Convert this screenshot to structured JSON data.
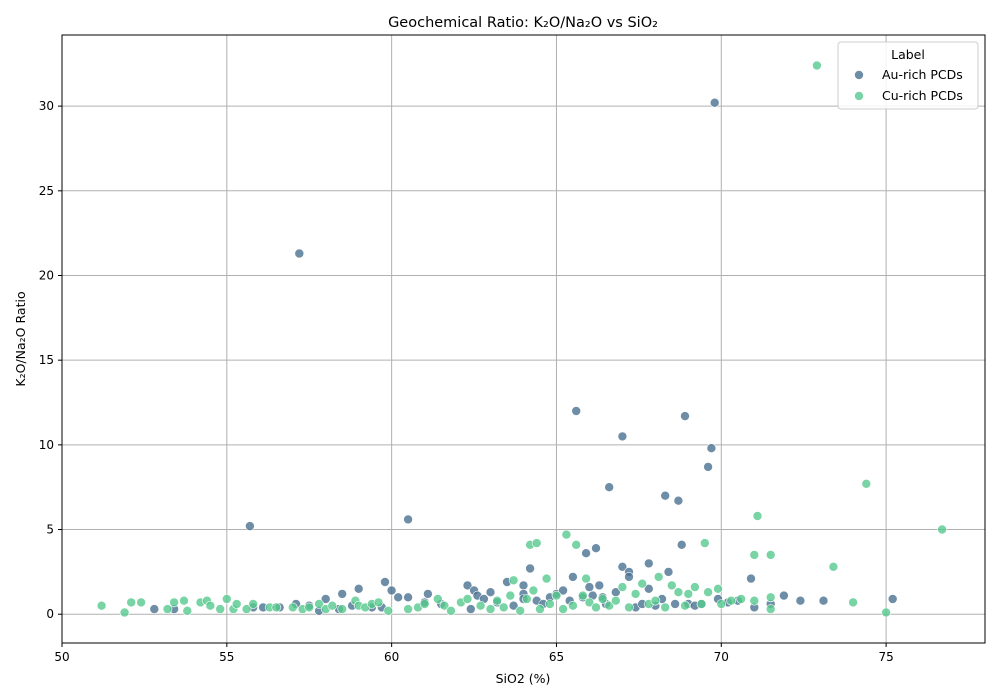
{
  "chart_data": {
    "type": "scatter",
    "title": "Geochemical Ratio: K₂O/Na₂O vs SiO₂",
    "xlabel": "SiO2 (%)",
    "ylabel": "K₂O/Na₂O Ratio",
    "xlim": [
      50,
      78
    ],
    "ylim": [
      -1.7,
      34.2
    ],
    "xticks": [
      50,
      55,
      60,
      65,
      70,
      75
    ],
    "yticks": [
      0,
      5,
      10,
      15,
      20,
      25,
      30
    ],
    "grid": true,
    "legend": {
      "title": "Label",
      "position": "top-right"
    },
    "series": [
      {
        "name": "Au-rich PCDs",
        "color": "#4a7191",
        "points": [
          [
            52.8,
            0.3
          ],
          [
            53.4,
            0.3
          ],
          [
            55.7,
            5.2
          ],
          [
            55.8,
            0.4
          ],
          [
            56.1,
            0.4
          ],
          [
            56.6,
            0.4
          ],
          [
            57.2,
            21.3
          ],
          [
            57.1,
            0.6
          ],
          [
            57.5,
            0.5
          ],
          [
            57.8,
            0.2
          ],
          [
            58.0,
            0.9
          ],
          [
            58.4,
            0.3
          ],
          [
            58.5,
            1.2
          ],
          [
            58.8,
            0.5
          ],
          [
            59.0,
            1.5
          ],
          [
            59.4,
            0.4
          ],
          [
            59.7,
            0.4
          ],
          [
            59.8,
            1.9
          ],
          [
            60.0,
            1.4
          ],
          [
            60.2,
            1.0
          ],
          [
            60.5,
            5.6
          ],
          [
            60.5,
            1.0
          ],
          [
            61.0,
            0.7
          ],
          [
            61.1,
            1.2
          ],
          [
            61.5,
            0.6
          ],
          [
            62.3,
            1.7
          ],
          [
            62.5,
            1.4
          ],
          [
            62.6,
            1.1
          ],
          [
            62.4,
            0.3
          ],
          [
            62.8,
            0.9
          ],
          [
            63.0,
            1.3
          ],
          [
            63.2,
            0.7
          ],
          [
            63.5,
            1.9
          ],
          [
            63.7,
            0.5
          ],
          [
            64.0,
            1.7
          ],
          [
            64.0,
            1.2
          ],
          [
            64.0,
            0.9
          ],
          [
            64.2,
            2.7
          ],
          [
            64.4,
            0.8
          ],
          [
            64.6,
            0.6
          ],
          [
            64.8,
            1.0
          ],
          [
            65.0,
            1.2
          ],
          [
            65.2,
            1.4
          ],
          [
            65.4,
            0.8
          ],
          [
            65.5,
            2.2
          ],
          [
            65.6,
            12.0
          ],
          [
            65.8,
            1.0
          ],
          [
            65.9,
            3.6
          ],
          [
            66.0,
            1.6
          ],
          [
            66.1,
            1.1
          ],
          [
            66.2,
            3.9
          ],
          [
            66.3,
            1.7
          ],
          [
            66.4,
            1.0
          ],
          [
            66.5,
            0.6
          ],
          [
            66.6,
            7.5
          ],
          [
            66.8,
            1.3
          ],
          [
            67.0,
            2.8
          ],
          [
            67.0,
            10.5
          ],
          [
            67.2,
            2.5
          ],
          [
            67.2,
            2.2
          ],
          [
            67.4,
            0.4
          ],
          [
            67.6,
            0.6
          ],
          [
            67.8,
            3.0
          ],
          [
            67.8,
            1.5
          ],
          [
            68.0,
            0.5
          ],
          [
            68.2,
            0.9
          ],
          [
            68.3,
            7.0
          ],
          [
            68.4,
            2.5
          ],
          [
            68.6,
            0.6
          ],
          [
            68.7,
            6.7
          ],
          [
            68.8,
            4.1
          ],
          [
            68.9,
            11.7
          ],
          [
            69.0,
            0.6
          ],
          [
            69.2,
            0.5
          ],
          [
            69.4,
            0.6
          ],
          [
            69.6,
            8.7
          ],
          [
            69.7,
            9.8
          ],
          [
            69.8,
            30.2
          ],
          [
            69.9,
            0.9
          ],
          [
            70.2,
            0.7
          ],
          [
            70.5,
            0.8
          ],
          [
            70.9,
            2.1
          ],
          [
            71.0,
            0.4
          ],
          [
            71.5,
            0.6
          ],
          [
            71.9,
            1.1
          ],
          [
            72.4,
            0.8
          ],
          [
            73.1,
            0.8
          ],
          [
            75.2,
            0.9
          ]
        ]
      },
      {
        "name": "Cu-rich PCDs",
        "color": "#56c98d",
        "points": [
          [
            51.2,
            0.5
          ],
          [
            51.9,
            0.1
          ],
          [
            52.1,
            0.7
          ],
          [
            52.4,
            0.7
          ],
          [
            53.2,
            0.3
          ],
          [
            53.4,
            0.7
          ],
          [
            53.7,
            0.8
          ],
          [
            53.8,
            0.2
          ],
          [
            54.2,
            0.7
          ],
          [
            54.4,
            0.8
          ],
          [
            54.5,
            0.5
          ],
          [
            54.8,
            0.3
          ],
          [
            55.0,
            0.9
          ],
          [
            55.2,
            0.3
          ],
          [
            55.3,
            0.6
          ],
          [
            55.6,
            0.3
          ],
          [
            55.8,
            0.6
          ],
          [
            56.3,
            0.4
          ],
          [
            56.5,
            0.4
          ],
          [
            57.0,
            0.4
          ],
          [
            57.3,
            0.3
          ],
          [
            57.5,
            0.4
          ],
          [
            57.8,
            0.6
          ],
          [
            58.0,
            0.3
          ],
          [
            58.2,
            0.5
          ],
          [
            58.5,
            0.3
          ],
          [
            58.9,
            0.8
          ],
          [
            59.0,
            0.5
          ],
          [
            59.2,
            0.4
          ],
          [
            59.4,
            0.6
          ],
          [
            59.6,
            0.7
          ],
          [
            59.9,
            0.2
          ],
          [
            60.5,
            0.3
          ],
          [
            60.8,
            0.4
          ],
          [
            61.0,
            0.6
          ],
          [
            61.4,
            0.9
          ],
          [
            61.6,
            0.5
          ],
          [
            61.8,
            0.2
          ],
          [
            62.1,
            0.7
          ],
          [
            62.3,
            0.9
          ],
          [
            62.7,
            0.5
          ],
          [
            63.0,
            0.3
          ],
          [
            63.2,
            0.8
          ],
          [
            63.4,
            0.4
          ],
          [
            63.6,
            1.1
          ],
          [
            63.7,
            2.0
          ],
          [
            63.9,
            0.2
          ],
          [
            64.1,
            0.9
          ],
          [
            64.2,
            4.1
          ],
          [
            64.3,
            1.4
          ],
          [
            64.4,
            4.2
          ],
          [
            64.5,
            0.3
          ],
          [
            64.7,
            2.1
          ],
          [
            64.8,
            0.6
          ],
          [
            65.0,
            1.1
          ],
          [
            65.2,
            0.3
          ],
          [
            65.3,
            4.7
          ],
          [
            65.5,
            0.5
          ],
          [
            65.6,
            4.1
          ],
          [
            65.8,
            1.1
          ],
          [
            65.9,
            2.1
          ],
          [
            66.0,
            0.7
          ],
          [
            66.2,
            0.4
          ],
          [
            66.4,
            0.9
          ],
          [
            66.6,
            0.5
          ],
          [
            66.8,
            0.8
          ],
          [
            67.0,
            1.6
          ],
          [
            67.2,
            0.4
          ],
          [
            67.4,
            1.2
          ],
          [
            67.6,
            1.8
          ],
          [
            67.8,
            0.6
          ],
          [
            68.0,
            0.8
          ],
          [
            68.1,
            2.2
          ],
          [
            68.3,
            0.4
          ],
          [
            68.5,
            1.7
          ],
          [
            68.7,
            1.3
          ],
          [
            68.9,
            0.5
          ],
          [
            69.0,
            1.2
          ],
          [
            69.2,
            1.6
          ],
          [
            69.4,
            0.6
          ],
          [
            69.5,
            4.2
          ],
          [
            69.6,
            1.3
          ],
          [
            69.9,
            1.5
          ],
          [
            70.0,
            0.6
          ],
          [
            70.3,
            0.8
          ],
          [
            70.6,
            0.9
          ],
          [
            71.0,
            0.8
          ],
          [
            71.0,
            3.5
          ],
          [
            71.1,
            5.8
          ],
          [
            71.5,
            3.5
          ],
          [
            71.5,
            1.0
          ],
          [
            71.5,
            0.3
          ],
          [
            72.9,
            32.4
          ],
          [
            73.4,
            2.8
          ],
          [
            74.0,
            0.7
          ],
          [
            74.4,
            7.7
          ],
          [
            75.0,
            0.1
          ],
          [
            76.7,
            5.0
          ]
        ]
      }
    ]
  }
}
